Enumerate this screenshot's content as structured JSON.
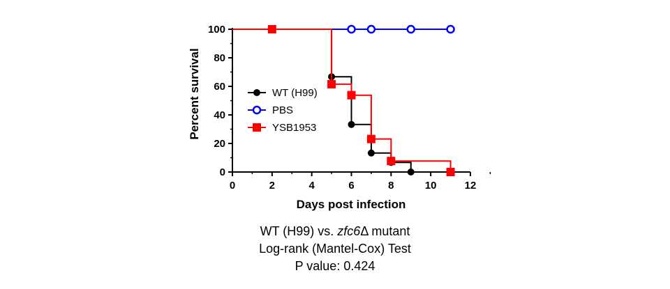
{
  "chart_data": {
    "type": "line",
    "xlabel": "Days post infection",
    "ylabel": "Percent survival",
    "xlim": [
      0,
      12
    ],
    "ylim": [
      0,
      100
    ],
    "xticks": [
      0,
      2,
      4,
      6,
      8,
      10,
      12
    ],
    "yticks": [
      0,
      20,
      40,
      60,
      80,
      100
    ],
    "grid": false,
    "legend_position": "left-middle",
    "series": [
      {
        "name": "WT (H99)",
        "color": "#000000",
        "marker": "filled-circle",
        "steps": [
          [
            0,
            100
          ],
          [
            5,
            100
          ],
          [
            5,
            66.7
          ],
          [
            6,
            66.7
          ],
          [
            6,
            33.3
          ],
          [
            7,
            33.3
          ],
          [
            7,
            13.3
          ],
          [
            8,
            13.3
          ],
          [
            8,
            6.7
          ],
          [
            9,
            6.7
          ],
          [
            9,
            0
          ]
        ],
        "points": [
          [
            5,
            66.7
          ],
          [
            6,
            33.3
          ],
          [
            7,
            13.3
          ],
          [
            8,
            6.7
          ],
          [
            9,
            0
          ]
        ]
      },
      {
        "name": "PBS",
        "color": "#0000ff",
        "marker": "open-circle",
        "steps": [
          [
            0,
            100
          ],
          [
            11,
            100
          ]
        ],
        "points": [
          [
            6,
            100
          ],
          [
            7,
            100
          ],
          [
            9,
            100
          ],
          [
            11,
            100
          ]
        ]
      },
      {
        "name": "YSB1953",
        "color": "#ff0000",
        "marker": "filled-square",
        "steps": [
          [
            0,
            100
          ],
          [
            5,
            100
          ],
          [
            5,
            61.5
          ],
          [
            6,
            61.5
          ],
          [
            6,
            53.8
          ],
          [
            7,
            53.8
          ],
          [
            7,
            23.1
          ],
          [
            8,
            23.1
          ],
          [
            8,
            7.7
          ],
          [
            11,
            7.7
          ],
          [
            11,
            0
          ]
        ],
        "points": [
          [
            2,
            100
          ],
          [
            5,
            61.5
          ],
          [
            6,
            53.8
          ],
          [
            7,
            23.1
          ],
          [
            8,
            7.7
          ],
          [
            11,
            0
          ]
        ]
      }
    ]
  },
  "caption": {
    "line1_prefix": "WT (H99) vs. ",
    "line1_gene": "zfc6",
    "line1_suffix": "Δ mutant",
    "line2": "Log-rank (Mantel-Cox) Test",
    "line3": "P value: 0.424"
  }
}
